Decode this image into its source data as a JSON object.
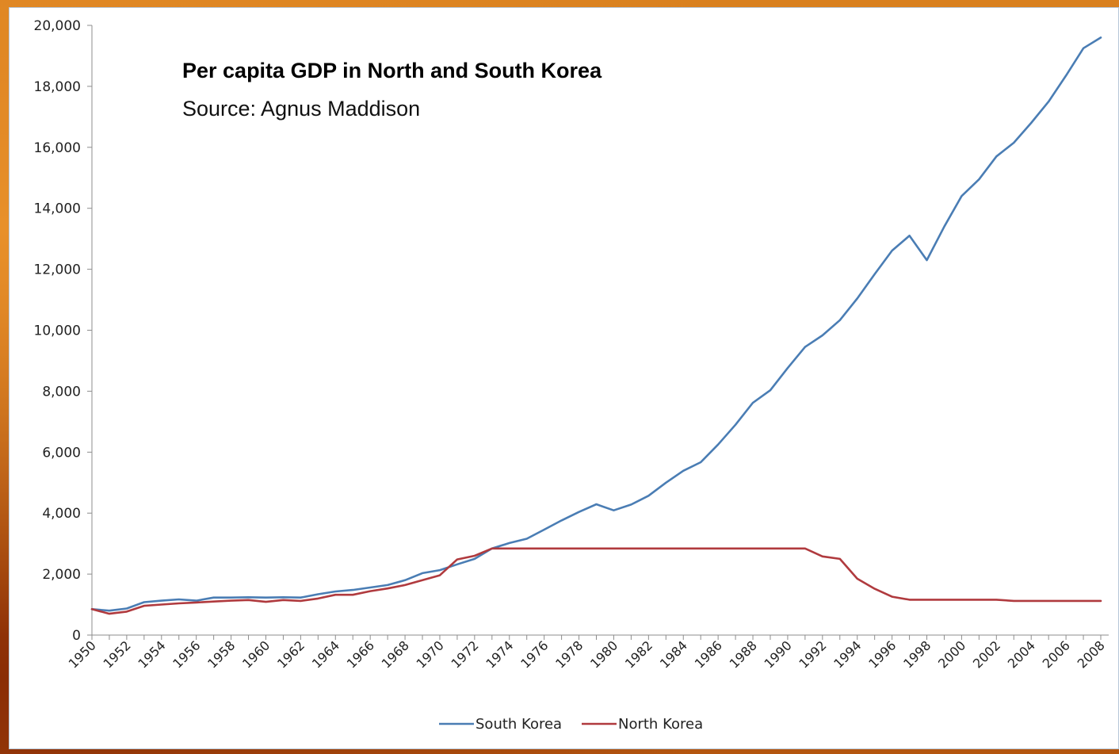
{
  "chart_data": {
    "type": "line",
    "title": "Per capita GDP in North and South Korea",
    "subtitle": "Source: Agnus Maddison",
    "xlabel": "",
    "ylabel": "",
    "ylim": [
      0,
      20000
    ],
    "yticks": [
      "0",
      "2,000",
      "4,000",
      "6,000",
      "8,000",
      "10,000",
      "12,000",
      "14,000",
      "16,000",
      "18,000",
      "20,000"
    ],
    "xtick_labels": [
      "1950",
      "1952",
      "1954",
      "1956",
      "1958",
      "1960",
      "1962",
      "1964",
      "1966",
      "1968",
      "1970",
      "1972",
      "1974",
      "1976",
      "1978",
      "1980",
      "1982",
      "1984",
      "1986",
      "1988",
      "1990",
      "1992",
      "1994",
      "1996",
      "1998",
      "2000",
      "2002",
      "2004",
      "2006",
      "2008"
    ],
    "x": [
      1950,
      1951,
      1952,
      1953,
      1954,
      1955,
      1956,
      1957,
      1958,
      1959,
      1960,
      1961,
      1962,
      1963,
      1964,
      1965,
      1966,
      1967,
      1968,
      1969,
      1970,
      1971,
      1972,
      1973,
      1974,
      1975,
      1976,
      1977,
      1978,
      1979,
      1980,
      1981,
      1982,
      1983,
      1984,
      1985,
      1986,
      1987,
      1988,
      1989,
      1990,
      1991,
      1992,
      1993,
      1994,
      1995,
      1996,
      1997,
      1998,
      1999,
      2000,
      2001,
      2002,
      2003,
      2004,
      2005,
      2006,
      2007,
      2008
    ],
    "grid": false,
    "legend_position": "bottom",
    "series": [
      {
        "name": "South Korea",
        "color": "#4a7db4",
        "values": [
          850,
          800,
          870,
          1080,
          1130,
          1170,
          1130,
          1230,
          1230,
          1240,
          1230,
          1240,
          1230,
          1340,
          1430,
          1480,
          1560,
          1640,
          1800,
          2030,
          2130,
          2320,
          2500,
          2840,
          3020,
          3160,
          3460,
          3760,
          4040,
          4290,
          4090,
          4280,
          4570,
          5000,
          5390,
          5670,
          6250,
          6900,
          7620,
          8030,
          8760,
          9450,
          9830,
          10330,
          11040,
          11840,
          12610,
          13100,
          12300,
          13400,
          14400,
          14950,
          15700,
          16150,
          16800,
          17500,
          18350,
          19250,
          19600
        ]
      },
      {
        "name": "North Korea",
        "color": "#b03a3e",
        "values": [
          850,
          700,
          770,
          960,
          1000,
          1040,
          1070,
          1100,
          1130,
          1150,
          1090,
          1150,
          1120,
          1200,
          1320,
          1320,
          1440,
          1530,
          1640,
          1800,
          1960,
          2480,
          2600,
          2840,
          2840,
          2840,
          2840,
          2840,
          2840,
          2840,
          2840,
          2840,
          2840,
          2840,
          2840,
          2840,
          2840,
          2840,
          2840,
          2840,
          2840,
          2840,
          2580,
          2500,
          1850,
          1520,
          1260,
          1160,
          1160,
          1160,
          1160,
          1160,
          1160,
          1120,
          1120,
          1120,
          1120,
          1120,
          1120
        ]
      }
    ]
  }
}
